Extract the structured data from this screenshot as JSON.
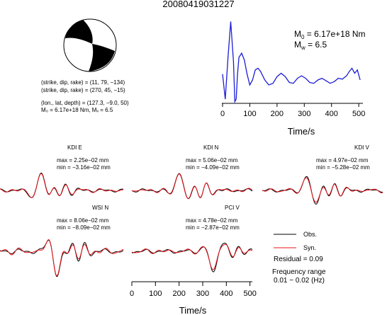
{
  "title": "20080419031227",
  "colors": {
    "observed": "#000000",
    "synthetic": "#e8141b",
    "stf": "#1d1dd6",
    "beach_dark": "#000000"
  },
  "source_info": {
    "line1": "(strike, dip, rake) = (11, 79, −134)",
    "line2": "(strike, dip, rake) = (270, 45, −15)",
    "line3": "(lon., lat, depth) = (127.3, −9.0, 50)",
    "line4": "M₀ = 6.17e+18 Nm, Mᵥ = 6.5"
  },
  "stf_label": {
    "m0": "M",
    "m0_sub": "0",
    "m0_val": " = 6.17e+18 Nm",
    "mw": "M",
    "mw_sub": "w",
    "mw_val": " = 6.5"
  },
  "chart_data": [
    {
      "type": "line",
      "name": "source time function",
      "xlabel": "Time/s",
      "ylabel": "",
      "xlim": [
        0,
        510
      ],
      "xticks": [
        0,
        100,
        200,
        300,
        400,
        500
      ],
      "series": [
        {
          "x": [
            0,
            10,
            20,
            30,
            40,
            45,
            50,
            55,
            60,
            70,
            80,
            90,
            100,
            110,
            120,
            130,
            140,
            155,
            170,
            185,
            200,
            215,
            230,
            245,
            260,
            275,
            290,
            305,
            320,
            335,
            350,
            365,
            380,
            395,
            410,
            425,
            440,
            455,
            465,
            475,
            485,
            495,
            505
          ],
          "y": [
            0.35,
            0.05,
            0.55,
            0.98,
            0.5,
            0.02,
            0.05,
            0.35,
            0.55,
            0.6,
            0.52,
            0.35,
            0.22,
            0.28,
            0.4,
            0.42,
            0.38,
            0.28,
            0.22,
            0.24,
            0.32,
            0.36,
            0.32,
            0.25,
            0.24,
            0.3,
            0.33,
            0.3,
            0.25,
            0.24,
            0.28,
            0.3,
            0.27,
            0.24,
            0.26,
            0.3,
            0.29,
            0.33,
            0.38,
            0.42,
            0.36,
            0.4,
            0.28
          ]
        }
      ]
    },
    {
      "type": "line",
      "name": "waveform comparison",
      "xlabel": "Time/s",
      "xlim": [
        0,
        510
      ],
      "xticks": [
        0,
        100,
        200,
        300,
        400,
        500
      ],
      "legend": {
        "observed": "Obs.",
        "synthetic": "Syn.",
        "residual": "Residual = 0.09",
        "freq_title": "Frequency range",
        "freq_value": "0.01 − 0.02 (Hz)"
      },
      "stations": [
        {
          "label": "KDI E",
          "max": "max = 2.25e−02 mm",
          "min": "min = −3.16e−02 mm"
        },
        {
          "label": "KDI N",
          "max": "max = 5.06e−02 mm",
          "min": "min = −4.09e−02 mm"
        },
        {
          "label": "KDI V",
          "max": "max = 4.97e−02 mm",
          "min": "min = −5.28e−02 mm"
        },
        {
          "label": "WSI N",
          "max": "max = 8.06e−02 mm",
          "min": "min = −8.09e−02 mm"
        },
        {
          "label": "PCI V",
          "max": "max = 4.78e−02 mm",
          "min": "min = −2.87e−02 mm"
        }
      ]
    }
  ]
}
